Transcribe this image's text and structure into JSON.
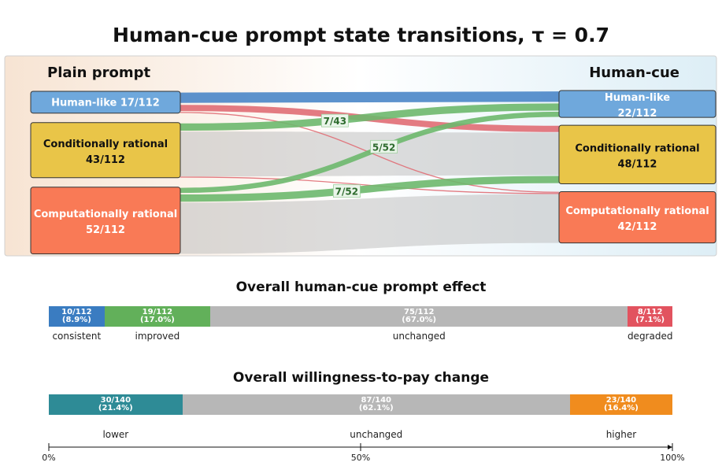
{
  "title": "Human-cue prompt state transitions, τ = 0.7",
  "chart_data": [
    {
      "type": "sankey",
      "left_header": "Plain prompt",
      "right_header": "Human-cue",
      "left_nodes": [
        {
          "id": "hl",
          "name": "Human-like",
          "count": "17/112",
          "value": 17,
          "color": "#6fa8dc"
        },
        {
          "id": "cr",
          "name": "Conditionally rational",
          "count": "43/112",
          "value": 43,
          "color": "#e9c548"
        },
        {
          "id": "cpr",
          "name": "Computationally rational",
          "count": "52/112",
          "value": 52,
          "color": "#f97a56"
        }
      ],
      "right_nodes": [
        {
          "id": "hl",
          "name": "Human-like",
          "count": "22/112",
          "value": 22,
          "color": "#6fa8dc"
        },
        {
          "id": "cr",
          "name": "Conditionally rational",
          "count": "48/112",
          "value": 48,
          "color": "#e9c548"
        },
        {
          "id": "cpr",
          "name": "Computationally rational",
          "count": "42/112",
          "value": 42,
          "color": "#f97a56"
        }
      ],
      "flows": [
        {
          "from": "hl",
          "to": "hl",
          "value": 10,
          "kind": "consistent",
          "label": ""
        },
        {
          "from": "hl",
          "to": "cr",
          "value": 6,
          "kind": "degraded",
          "label": ""
        },
        {
          "from": "hl",
          "to": "cpr",
          "value": 1,
          "kind": "degraded",
          "label": ""
        },
        {
          "from": "cr",
          "to": "hl",
          "value": 7,
          "kind": "improved",
          "label": "7/43"
        },
        {
          "from": "cr",
          "to": "cr",
          "value": 35,
          "kind": "unchanged",
          "label": ""
        },
        {
          "from": "cr",
          "to": "cpr",
          "value": 1,
          "kind": "degraded",
          "label": ""
        },
        {
          "from": "cpr",
          "to": "hl",
          "value": 5,
          "kind": "improved",
          "label": "5/52"
        },
        {
          "from": "cpr",
          "to": "cr",
          "value": 7,
          "kind": "improved",
          "label": "7/52"
        },
        {
          "from": "cpr",
          "to": "cpr",
          "value": 40,
          "kind": "unchanged",
          "label": ""
        }
      ],
      "flow_colors": {
        "consistent": "#4a86c8",
        "improved": "#6db86d",
        "degraded": "#e06d74",
        "unchanged": "#bfbfbf"
      }
    },
    {
      "type": "stacked-bar",
      "title": "Overall human-cue prompt effect",
      "total": 112,
      "segments": [
        {
          "label": "consistent",
          "count": "10/112",
          "pct": "(8.9%)",
          "value": 10,
          "color": "#3a7cc1"
        },
        {
          "label": "improved",
          "count": "19/112",
          "pct": "(17.0%)",
          "value": 19,
          "color": "#62b05a"
        },
        {
          "label": "unchanged",
          "count": "75/112",
          "pct": "(67.0%)",
          "value": 75,
          "color": "#b7b7b7"
        },
        {
          "label": "degraded",
          "count": "8/112",
          "pct": "(7.1%)",
          "value": 8,
          "color": "#e2535f"
        }
      ]
    },
    {
      "type": "stacked-bar",
      "title": "Overall willingness-to-pay change",
      "total": 140,
      "segments": [
        {
          "label": "lower",
          "count": "30/140",
          "pct": "(21.4%)",
          "value": 30,
          "color": "#2e8b96"
        },
        {
          "label": "unchanged",
          "count": "87/140",
          "pct": "(62.1%)",
          "value": 87,
          "color": "#b7b7b7"
        },
        {
          "label": "higher",
          "count": "23/140",
          "pct": "(16.4%)",
          "value": 23,
          "color": "#f08c1e"
        }
      ],
      "axis_ticks": [
        "0%",
        "50%",
        "100%"
      ]
    }
  ]
}
